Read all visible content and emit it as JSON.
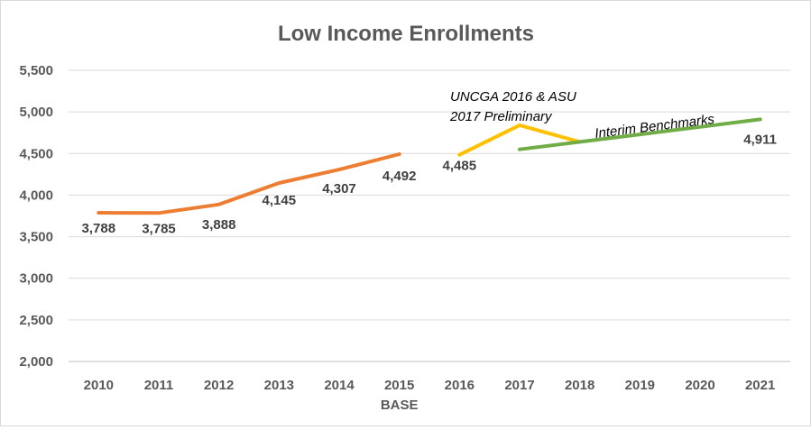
{
  "chart_data": {
    "type": "line",
    "title": "Low Income Enrollments",
    "categories": [
      "2010",
      "2011",
      "2012",
      "2013",
      "2014",
      "2015",
      "2016",
      "2017",
      "2018",
      "2019",
      "2020",
      "2021"
    ],
    "category_sublabels": {
      "2015": "BASE"
    },
    "ylim": [
      2000,
      5500
    ],
    "yticks": [
      "2,000",
      "2,500",
      "3,000",
      "3,500",
      "4,000",
      "4,500",
      "5,000",
      "5,500"
    ],
    "ytick_values": [
      2000,
      2500,
      3000,
      3500,
      4000,
      4500,
      5000,
      5500
    ],
    "grid": true,
    "series": [
      {
        "id": "actual",
        "color": "#ed7d31",
        "x": [
          "2010",
          "2011",
          "2012",
          "2013",
          "2014",
          "2015"
        ],
        "values": [
          3788,
          3785,
          3888,
          4145,
          4307,
          4492
        ],
        "labels": [
          "3,788",
          "3,785",
          "3,888",
          "4,145",
          "4,307",
          "4,492"
        ]
      },
      {
        "id": "preliminary",
        "color": "#ffc000",
        "x": [
          "2016",
          "2017",
          "2018"
        ],
        "values": [
          4485,
          4840,
          4640
        ],
        "labels": [
          "4,485",
          null,
          null
        ]
      },
      {
        "id": "benchmarks",
        "color": "#70ad47",
        "x": [
          "2017",
          "2018",
          "2019",
          "2020",
          "2021"
        ],
        "values": [
          4550,
          4640,
          4730,
          4820,
          4911
        ],
        "labels": [
          null,
          null,
          null,
          null,
          "4,911"
        ]
      }
    ],
    "annotations": [
      {
        "text": "UNCGA 2016 & ASU",
        "near": "2017"
      },
      {
        "text": "2017 Preliminary",
        "near": "2017"
      },
      {
        "text": "Interim Benchmarks",
        "near": "2019"
      }
    ]
  }
}
